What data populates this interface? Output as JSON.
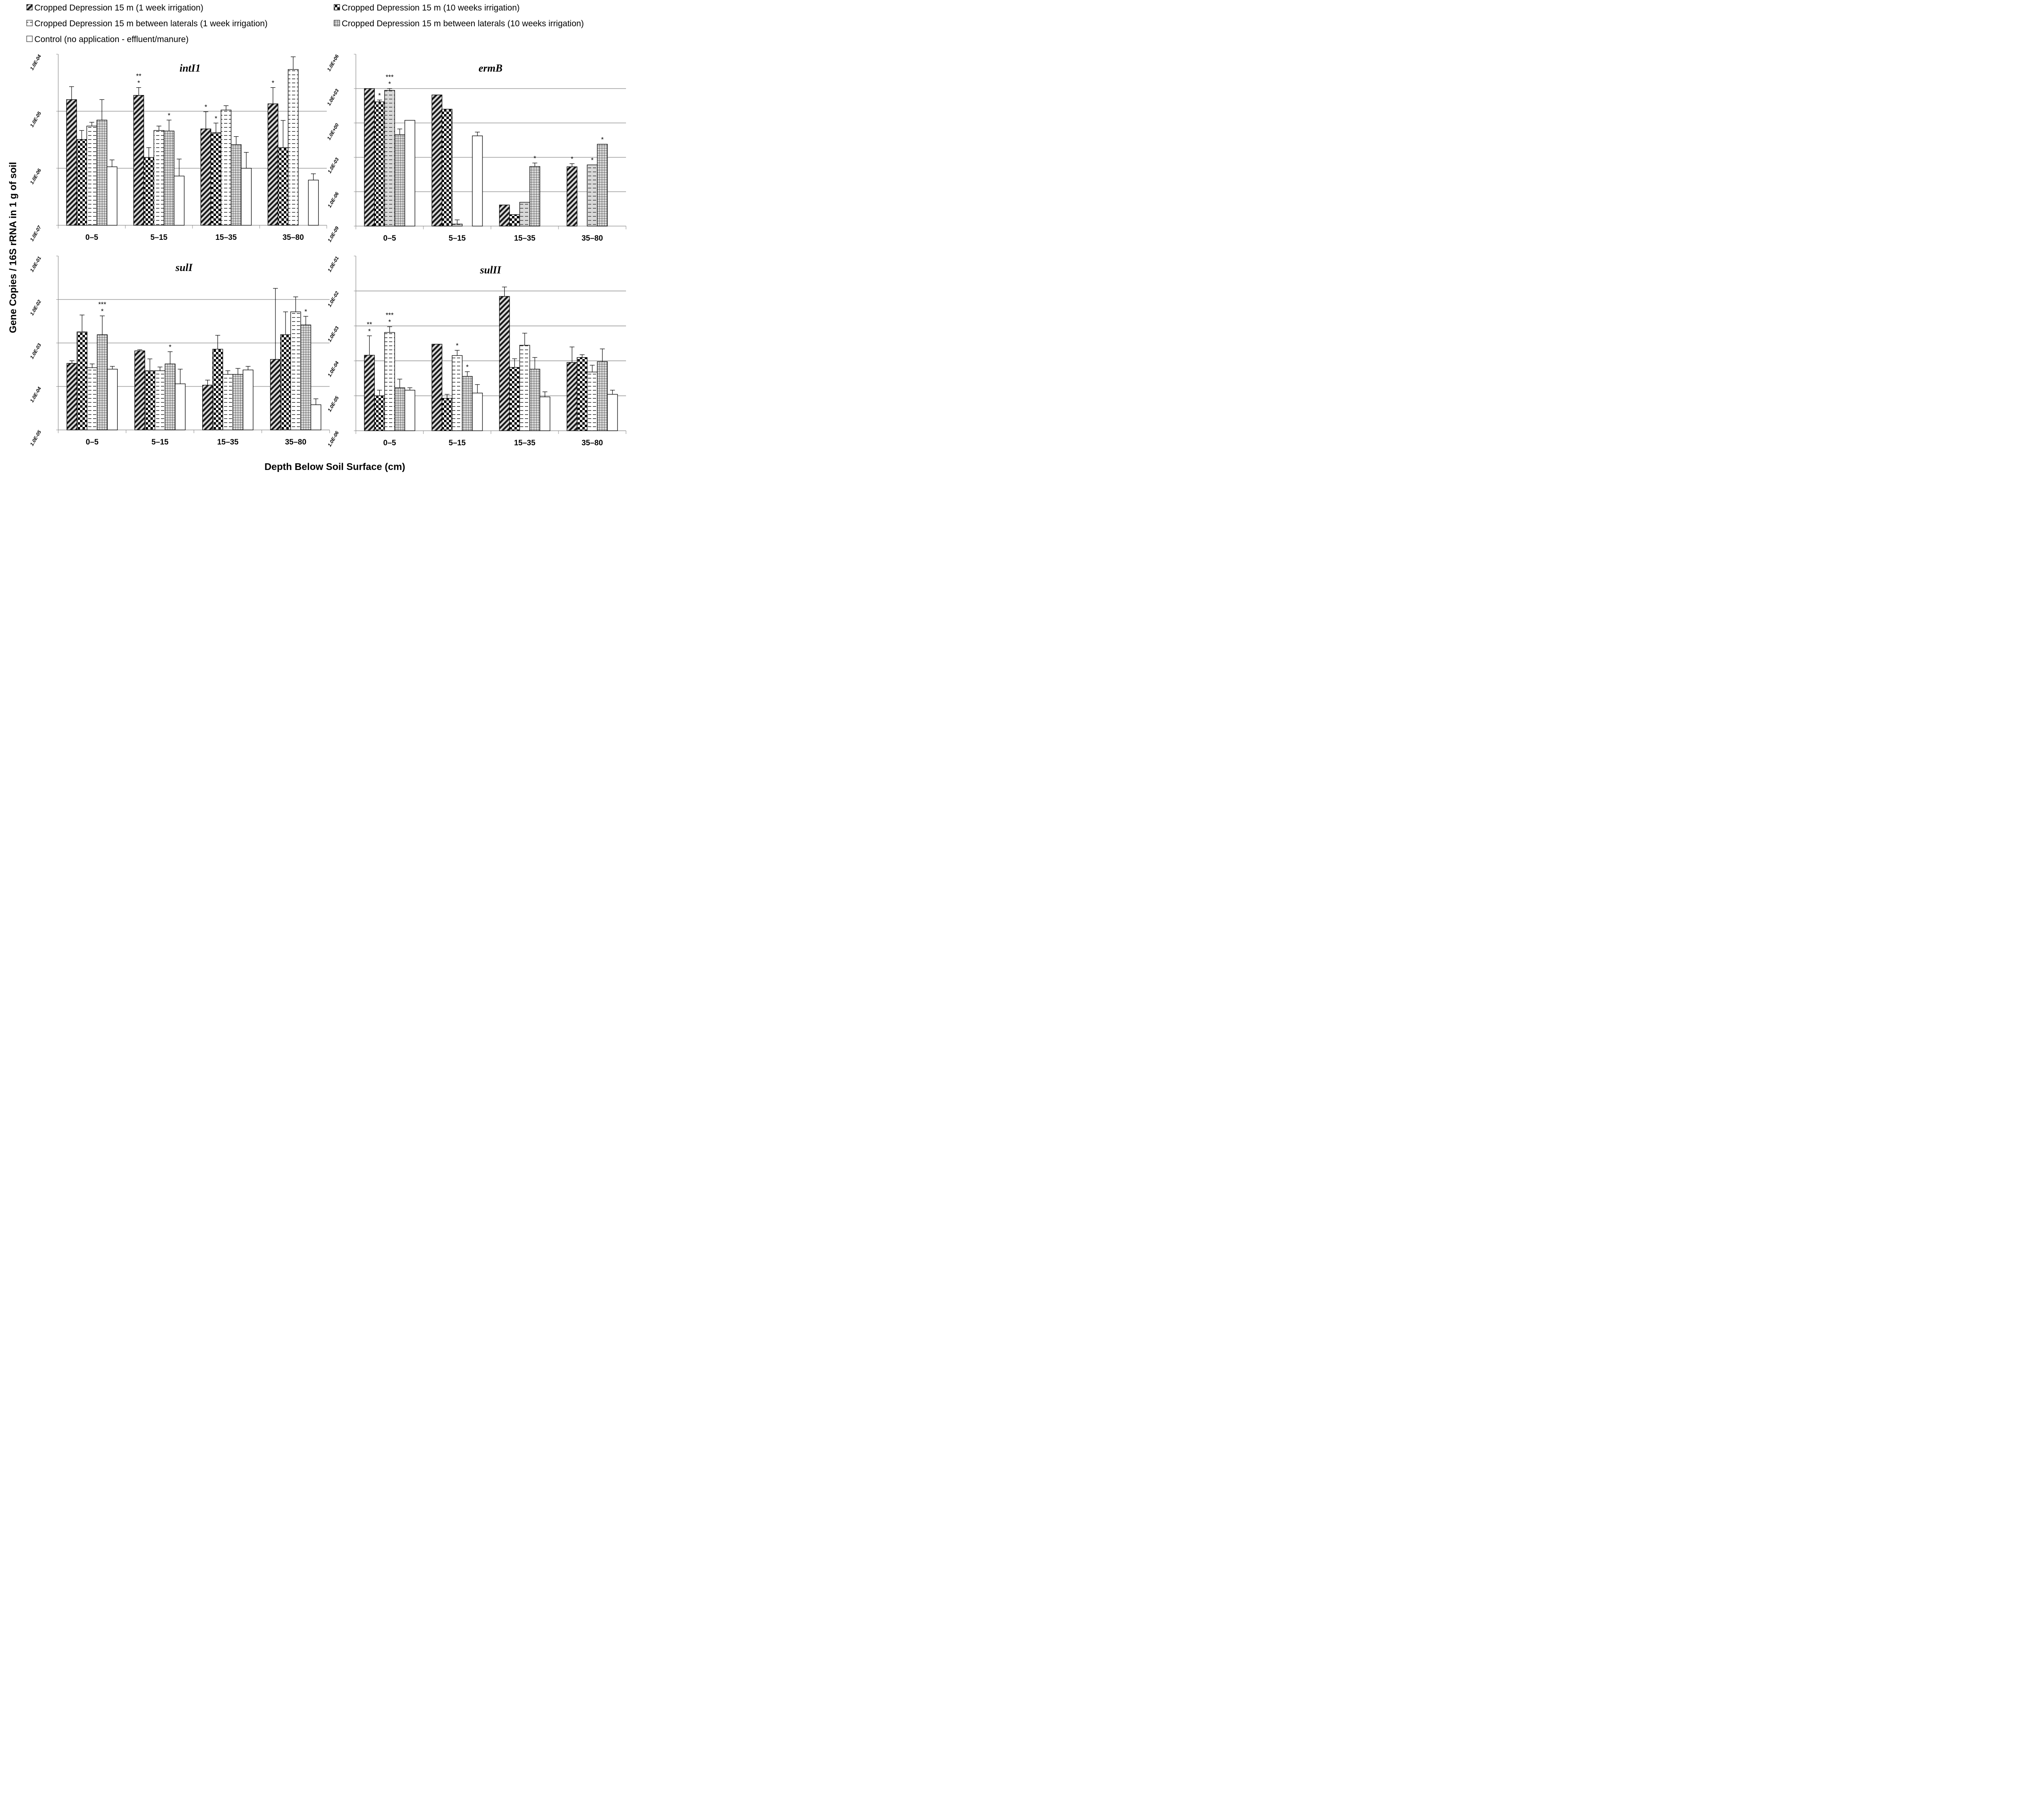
{
  "figure": {
    "ylabel": "Gene Copies / 16S rRNA in 1  g of soil",
    "xlabel": "Depth Below Soil Surface (cm)"
  },
  "legend": [
    {
      "label": "Cropped Depression 15 m (1 week irrigation)",
      "pattern": "diag"
    },
    {
      "label": "Cropped Depression 15 m (10 weeks irrigation)",
      "pattern": "checker"
    },
    {
      "label": "Cropped Depression 15 m between laterals (1 week irrigation)",
      "pattern": "dash"
    },
    {
      "label": "Cropped Depression 15 m between laterals (10 weeks irrigation)",
      "pattern": "grid"
    },
    {
      "label": "Control (no application - effluent/manure)",
      "pattern": "blank"
    }
  ],
  "colors": {
    "bar_stroke": "#000000",
    "gridline": "#9a9a9a",
    "shaded_fill": "#d9d9d9",
    "background": "#ffffff"
  },
  "chart_data": [
    {
      "type": "bar",
      "title": "intI1",
      "y_scale": "log",
      "ylim": [
        1e-07,
        0.0001
      ],
      "y_ticks": [
        "1.0E-07",
        "1.0E-06",
        "1.0E-05",
        "1.0E-04"
      ],
      "categories": [
        "0–5",
        "5–15",
        "15–35",
        "35–80"
      ],
      "grid": true,
      "series": [
        {
          "name": "Cropped Depression 15 m (1 week irrigation)",
          "values": [
            1.6e-05,
            1.9e-05,
            4.9e-06,
            1.35e-05
          ],
          "errors": [
            2.7e-05,
            2.6e-05,
            9.8e-06,
            2.6e-05
          ]
        },
        {
          "name": "Cropped Depression 15 m (10 weeks irrigation)",
          "values": [
            3.2e-06,
            1.55e-06,
            4.2e-06,
            2.3e-06
          ],
          "errors": [
            4.6e-06,
            2.3e-06,
            6.2e-06,
            6.9e-06
          ]
        },
        {
          "name": "Cropped Depression 15 m between laterals (1 week irrigation)",
          "values": [
            5.5e-06,
            4.6e-06,
            1.05e-05,
            5.4e-05
          ],
          "errors": [
            6.4e-06,
            5.5e-06,
            1.25e-05,
            9e-05
          ]
        },
        {
          "name": "Cropped Depression 15 m between laterals (10 weeks irrigation)",
          "values": [
            7e-06,
            4.5e-06,
            2.6e-06,
            null
          ],
          "errors": [
            1.6e-05,
            7e-06,
            3.6e-06,
            null
          ]
        },
        {
          "name": "Control (no application - effluent/manure)",
          "values": [
            1.06e-06,
            7.3e-07,
            1e-06,
            6.2e-07
          ],
          "errors": [
            1.4e-06,
            1.45e-06,
            1.9e-06,
            8e-07
          ]
        }
      ],
      "annotations": [
        {
          "category": "0–5",
          "series": 0,
          "text": []
        },
        {
          "category": "5–15",
          "series": 0,
          "text": [
            "**",
            "*"
          ]
        },
        {
          "category": "5–15",
          "series": 3,
          "text": [
            "*"
          ]
        },
        {
          "category": "15–35",
          "series": 0,
          "text": [
            "*"
          ]
        },
        {
          "category": "15–35",
          "series": 1,
          "text": [
            "*"
          ]
        },
        {
          "category": "35–80",
          "series": 0,
          "text": [
            "*"
          ]
        }
      ]
    },
    {
      "type": "bar",
      "title": "ermB",
      "y_scale": "log",
      "ylim": [
        1e-09,
        1000000.0
      ],
      "y_ticks": [
        "1.0E-09",
        "1.0E-06",
        "1.0E-03",
        "1.0E+00",
        "1.0E+03",
        "1.0E+06"
      ],
      "categories": [
        "0–5",
        "5–15",
        "15–35",
        "35–80"
      ],
      "grid": true,
      "series": [
        {
          "name": "Cropped Depression 15 m (1 week irrigation)",
          "values": [
            1000,
            280,
            7e-08,
            0.00015
          ],
          "errors": [
            null,
            null,
            null,
            0.00028
          ]
        },
        {
          "name": "Cropped Depression 15 m (10 weeks irrigation)",
          "values": [
            70,
            16,
            1e-08,
            null
          ],
          "errors": [
            100,
            null,
            null,
            null
          ]
        },
        {
          "name": "Cropped Depression 15 m between laterals (1 week irrigation)",
          "values": [
            700,
            1.5e-09,
            1.2e-07,
            0.00022
          ],
          "errors": [
            1000,
            3.5e-09,
            null,
            null
          ]
        },
        {
          "name": "Cropped Depression 15 m between laterals (10 weeks irrigation)",
          "values": [
            0.095,
            null,
            0.00016,
            0.014
          ],
          "errors": [
            0.3,
            null,
            0.00032,
            null
          ]
        },
        {
          "name": "Control (no application - effluent/manure)",
          "values": [
            1.7,
            0.075,
            null,
            null
          ],
          "errors": [
            null,
            0.16,
            null,
            null
          ]
        }
      ],
      "annotations": [
        {
          "category": "0–5",
          "series": 1,
          "text": [
            "*"
          ]
        },
        {
          "category": "0–5",
          "series": 2,
          "text": [
            "***",
            "*"
          ]
        },
        {
          "category": "15–35",
          "series": 3,
          "text": [
            "*"
          ]
        },
        {
          "category": "35–80",
          "series": 0,
          "text": [
            "*"
          ]
        },
        {
          "category": "35–80",
          "series": 2,
          "text": [
            "*"
          ]
        },
        {
          "category": "35–80",
          "series": 3,
          "text": [
            "*"
          ]
        }
      ]
    },
    {
      "type": "bar",
      "title": "sulI",
      "y_scale": "log",
      "ylim": [
        1e-05,
        0.1
      ],
      "y_ticks": [
        "1.0E-05",
        "1.0E-04",
        "1.0E-03",
        "1.0E-02",
        "1.0E-01"
      ],
      "categories": [
        "0–5",
        "5–15",
        "15–35",
        "35–80"
      ],
      "grid": true,
      "series": [
        {
          "name": "Cropped Depression 15 m (1 week irrigation)",
          "values": [
            0.00034,
            0.00066,
            0.000107,
            0.00042
          ],
          "errors": [
            0.00039,
            0.0007,
            0.00014,
            0.018
          ]
        },
        {
          "name": "Cropped Depression 15 m (10 weeks irrigation)",
          "values": [
            0.0018,
            0.00023,
            0.00072,
            0.00155
          ],
          "errors": [
            0.0044,
            0.00043,
            0.0015,
            0.0052
          ]
        },
        {
          "name": "Cropped Depression 15 m between laterals (1 week irrigation)",
          "values": [
            0.00027,
            0.00023,
            0.00019,
            0.0052
          ],
          "errors": [
            0.00033,
            0.00028,
            0.00023,
            0.0115
          ]
        },
        {
          "name": "Cropped Depression 15 m between laterals (10 weeks irrigation)",
          "values": [
            0.00155,
            0.00033,
            0.00019,
            0.0026
          ],
          "errors": [
            0.0042,
            0.00063,
            0.00026,
            0.0041
          ]
        },
        {
          "name": "Control (no application - effluent/manure)",
          "values": [
            0.00025,
            0.000115,
            0.00024,
            3.8e-05
          ],
          "errors": [
            0.00029,
            0.00025,
            0.00029,
            5.2e-05
          ]
        }
      ],
      "annotations": [
        {
          "category": "0–5",
          "series": 3,
          "text": [
            "***",
            "*"
          ]
        },
        {
          "category": "5–15",
          "series": 3,
          "text": [
            "*"
          ]
        },
        {
          "category": "35–80",
          "series": 3,
          "text": [
            "*"
          ]
        }
      ]
    },
    {
      "type": "bar",
      "title": "sulII",
      "y_scale": "log",
      "ylim": [
        1e-06,
        0.1
      ],
      "y_ticks": [
        "1.0E-06",
        "1.0E-05",
        "1.0E-04",
        "1.0E-03",
        "1.0E-02",
        "1.0E-01"
      ],
      "categories": [
        "0–5",
        "5–15",
        "15–35",
        "35–80"
      ],
      "grid": true,
      "series": [
        {
          "name": "Cropped Depression 15 m (1 week irrigation)",
          "values": [
            0.000145,
            0.0003,
            0.007,
            9e-05
          ],
          "errors": [
            0.00052,
            null,
            0.013,
            0.00025
          ]
        },
        {
          "name": "Cropped Depression 15 m (10 weeks irrigation)",
          "values": [
            1e-05,
            8.5e-06,
            6.5e-05,
            0.000125
          ],
          "errors": [
            1.45e-05,
            1.1e-05,
            0.000115,
            0.00015
          ]
        },
        {
          "name": "Cropped Depression 15 m between laterals (1 week irrigation)",
          "values": [
            0.00065,
            0.000142,
            0.00028,
            4.8e-05
          ],
          "errors": [
            0.00095,
            0.0002,
            0.00062,
            7.5e-05
          ]
        },
        {
          "name": "Cropped Depression 15 m between laterals (10 weeks irrigation)",
          "values": [
            1.7e-05,
            3.6e-05,
            5.8e-05,
            9.5e-05
          ],
          "errors": [
            3e-05,
            4.9e-05,
            0.000125,
            0.00022
          ]
        },
        {
          "name": "Control (no application - effluent/manure)",
          "values": [
            1.45e-05,
            1.2e-05,
            9.3e-06,
            1.1e-05
          ],
          "errors": [
            1.7e-05,
            2.1e-05,
            1.3e-05,
            1.45e-05
          ]
        }
      ],
      "annotations": [
        {
          "category": "0–5",
          "series": 0,
          "text": [
            "**",
            "*"
          ]
        },
        {
          "category": "0–5",
          "series": 2,
          "text": [
            "***",
            "*"
          ]
        },
        {
          "category": "5–15",
          "series": 2,
          "text": [
            "*"
          ]
        },
        {
          "category": "5–15",
          "series": 3,
          "text": [
            "*"
          ]
        }
      ]
    }
  ]
}
